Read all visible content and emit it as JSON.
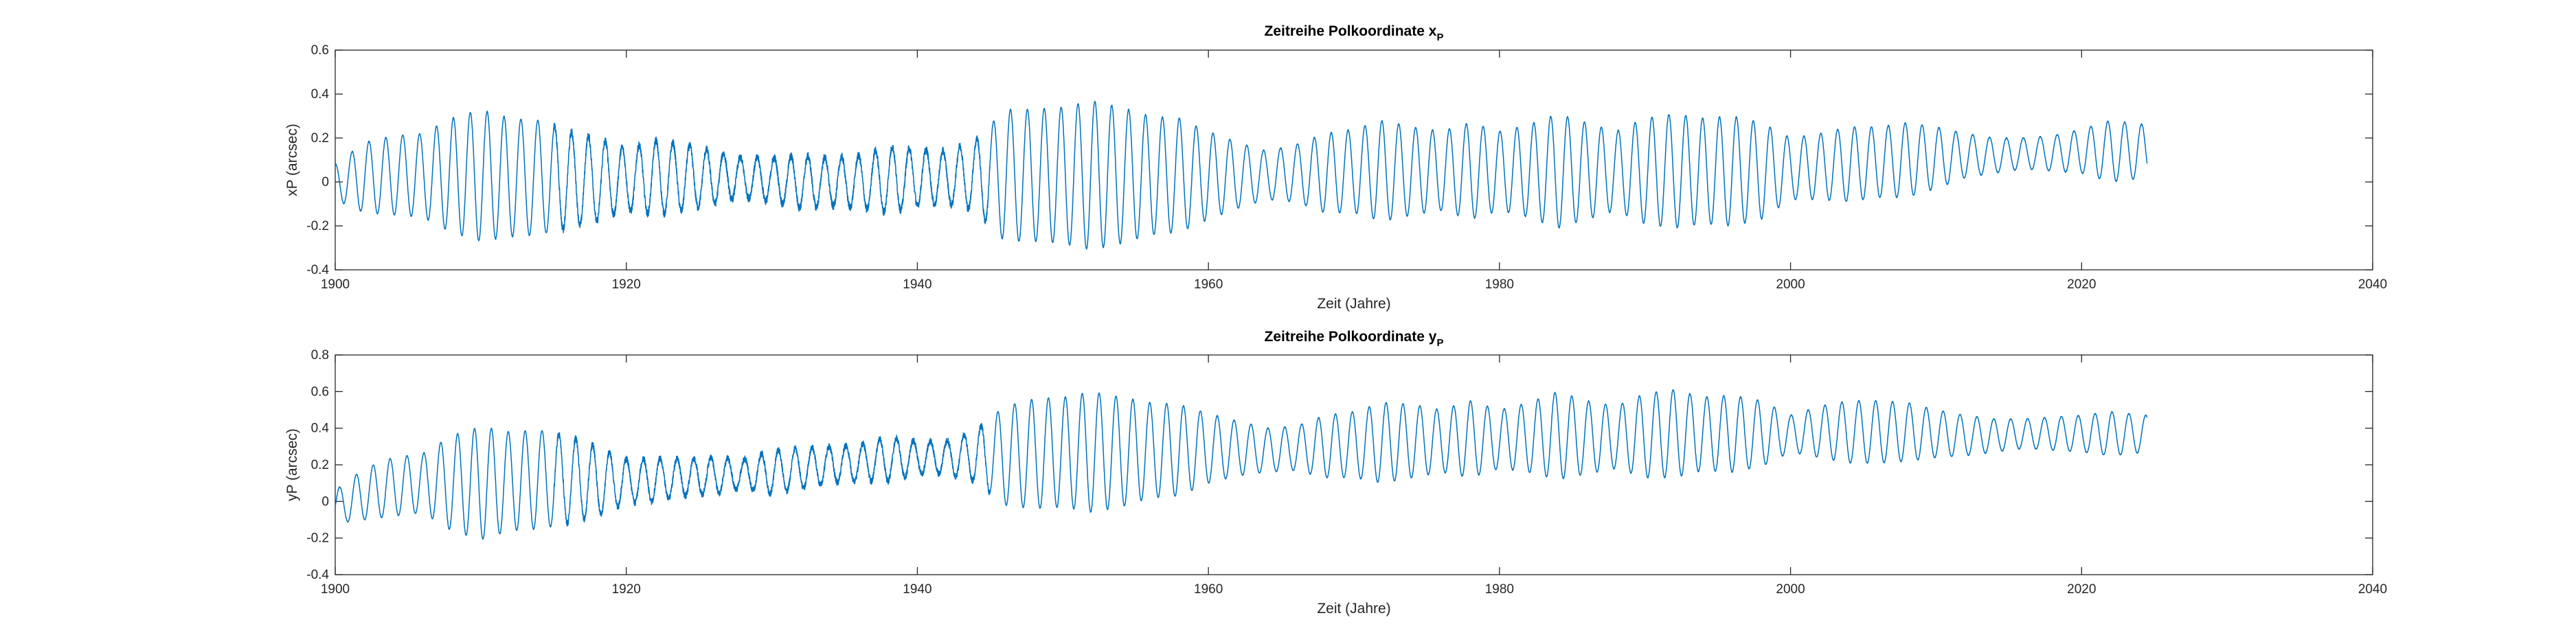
{
  "chart_data": [
    {
      "type": "line",
      "title": "Zeitreihe Polkoordinate x",
      "title_subscript": "P",
      "xlabel": "Zeit (Jahre)",
      "ylabel": "xP (arcsec)",
      "xlim": [
        1900,
        2040
      ],
      "ylim": [
        -0.4,
        0.6
      ],
      "xticks": [
        1900,
        1920,
        1940,
        1960,
        1980,
        2000,
        2020,
        2040
      ],
      "yticks": [
        -0.4,
        -0.2,
        0,
        0.2,
        0.4,
        0.6
      ],
      "xticklabels": [
        "1900",
        "1920",
        "1940",
        "1960",
        "1980",
        "2000",
        "2020",
        "2040"
      ],
      "yticklabels": [
        "-0.4",
        "-0.2",
        "0",
        "0.2",
        "0.4",
        "0.6"
      ],
      "grid": false,
      "line_color": "#0072BD",
      "series": [
        {
          "x": [
            1900,
            1902,
            1904,
            1906,
            1908,
            1910,
            1912,
            1914,
            1916,
            1918,
            1920,
            1922,
            1924,
            1926,
            1928,
            1930,
            1932,
            1934,
            1936,
            1938,
            1940,
            1942,
            1944,
            1946,
            1948,
            1950,
            1952,
            1954,
            1956,
            1958,
            1960,
            1962,
            1964,
            1966,
            1968,
            1970,
            1972,
            1974,
            1976,
            1978,
            1980,
            1982,
            1984,
            1986,
            1988,
            1990,
            1992,
            1994,
            1996,
            1998,
            2000,
            2002,
            2004,
            2006,
            2008,
            2010,
            2012,
            2014,
            2016,
            2018,
            2020,
            2022,
            2024.5
          ],
          "center": [
            0.0,
            0.02,
            0.03,
            0.03,
            0.03,
            0.03,
            0.02,
            0.02,
            0.01,
            0.01,
            0.01,
            0.02,
            0.02,
            0.02,
            0.02,
            0.01,
            0.0,
            0.0,
            0.0,
            0.01,
            0.02,
            0.02,
            0.03,
            0.03,
            0.03,
            0.03,
            0.03,
            0.03,
            0.03,
            0.03,
            0.03,
            0.03,
            0.03,
            0.04,
            0.04,
            0.05,
            0.05,
            0.05,
            0.05,
            0.05,
            0.05,
            0.05,
            0.05,
            0.05,
            0.05,
            0.05,
            0.05,
            0.05,
            0.05,
            0.05,
            0.06,
            0.07,
            0.08,
            0.09,
            0.1,
            0.11,
            0.12,
            0.12,
            0.13,
            0.13,
            0.14,
            0.14,
            0.14
          ],
          "amplitude": [
            0.08,
            0.16,
            0.18,
            0.19,
            0.26,
            0.3,
            0.27,
            0.26,
            0.22,
            0.19,
            0.14,
            0.17,
            0.15,
            0.12,
            0.09,
            0.1,
            0.12,
            0.11,
            0.12,
            0.15,
            0.13,
            0.12,
            0.16,
            0.3,
            0.3,
            0.31,
            0.34,
            0.31,
            0.27,
            0.26,
            0.2,
            0.15,
            0.11,
            0.13,
            0.18,
            0.19,
            0.23,
            0.2,
            0.18,
            0.22,
            0.18,
            0.21,
            0.26,
            0.22,
            0.18,
            0.24,
            0.26,
            0.24,
            0.25,
            0.22,
            0.14,
            0.15,
            0.17,
            0.16,
            0.17,
            0.14,
            0.1,
            0.08,
            0.07,
            0.08,
            0.1,
            0.14,
            0.12
          ]
        }
      ]
    },
    {
      "type": "line",
      "title": "Zeitreihe Polkoordinate y",
      "title_subscript": "P",
      "xlabel": "Zeit (Jahre)",
      "ylabel": "yP (arcsec)",
      "xlim": [
        1900,
        2040
      ],
      "ylim": [
        -0.4,
        0.8
      ],
      "xticks": [
        1900,
        1920,
        1940,
        1960,
        1980,
        2000,
        2020,
        2040
      ],
      "yticks": [
        -0.4,
        -0.2,
        0,
        0.2,
        0.4,
        0.6,
        0.8
      ],
      "xticklabels": [
        "1900",
        "1920",
        "1940",
        "1960",
        "1980",
        "2000",
        "2020",
        "2040"
      ],
      "yticklabels": [
        "-0.4",
        "-0.2",
        "0",
        "0.2",
        "0.4",
        "0.6",
        "0.8"
      ],
      "grid": false,
      "line_color": "#0072BD",
      "series": [
        {
          "x": [
            1900,
            1902,
            1904,
            1906,
            1908,
            1910,
            1912,
            1914,
            1916,
            1918,
            1920,
            1922,
            1924,
            1926,
            1928,
            1930,
            1932,
            1934,
            1936,
            1938,
            1940,
            1942,
            1944,
            1946,
            1948,
            1950,
            1952,
            1954,
            1956,
            1958,
            1960,
            1962,
            1964,
            1966,
            1968,
            1970,
            1972,
            1974,
            1976,
            1978,
            1980,
            1982,
            1984,
            1986,
            1988,
            1990,
            1992,
            1994,
            1996,
            1998,
            2000,
            2002,
            2004,
            2006,
            2008,
            2010,
            2012,
            2014,
            2016,
            2018,
            2020,
            2022,
            2024.5
          ],
          "center": [
            -0.03,
            0.04,
            0.08,
            0.1,
            0.1,
            0.1,
            0.11,
            0.12,
            0.12,
            0.11,
            0.11,
            0.12,
            0.13,
            0.14,
            0.15,
            0.16,
            0.18,
            0.2,
            0.21,
            0.23,
            0.24,
            0.24,
            0.25,
            0.25,
            0.26,
            0.27,
            0.27,
            0.27,
            0.28,
            0.28,
            0.29,
            0.29,
            0.28,
            0.29,
            0.3,
            0.31,
            0.32,
            0.33,
            0.33,
            0.34,
            0.34,
            0.35,
            0.36,
            0.35,
            0.35,
            0.36,
            0.37,
            0.37,
            0.37,
            0.37,
            0.37,
            0.38,
            0.38,
            0.38,
            0.38,
            0.37,
            0.36,
            0.36,
            0.37,
            0.37,
            0.37,
            0.37,
            0.37
          ],
          "amplitude": [
            0.09,
            0.14,
            0.16,
            0.16,
            0.26,
            0.31,
            0.27,
            0.27,
            0.24,
            0.19,
            0.12,
            0.12,
            0.1,
            0.1,
            0.08,
            0.12,
            0.11,
            0.1,
            0.1,
            0.12,
            0.09,
            0.09,
            0.14,
            0.27,
            0.3,
            0.3,
            0.33,
            0.3,
            0.26,
            0.25,
            0.19,
            0.15,
            0.12,
            0.12,
            0.17,
            0.18,
            0.22,
            0.2,
            0.17,
            0.21,
            0.16,
            0.19,
            0.24,
            0.2,
            0.17,
            0.23,
            0.24,
            0.2,
            0.21,
            0.18,
            0.1,
            0.14,
            0.17,
            0.17,
            0.16,
            0.13,
            0.11,
            0.09,
            0.08,
            0.09,
            0.1,
            0.12,
            0.1
          ]
        }
      ]
    }
  ]
}
